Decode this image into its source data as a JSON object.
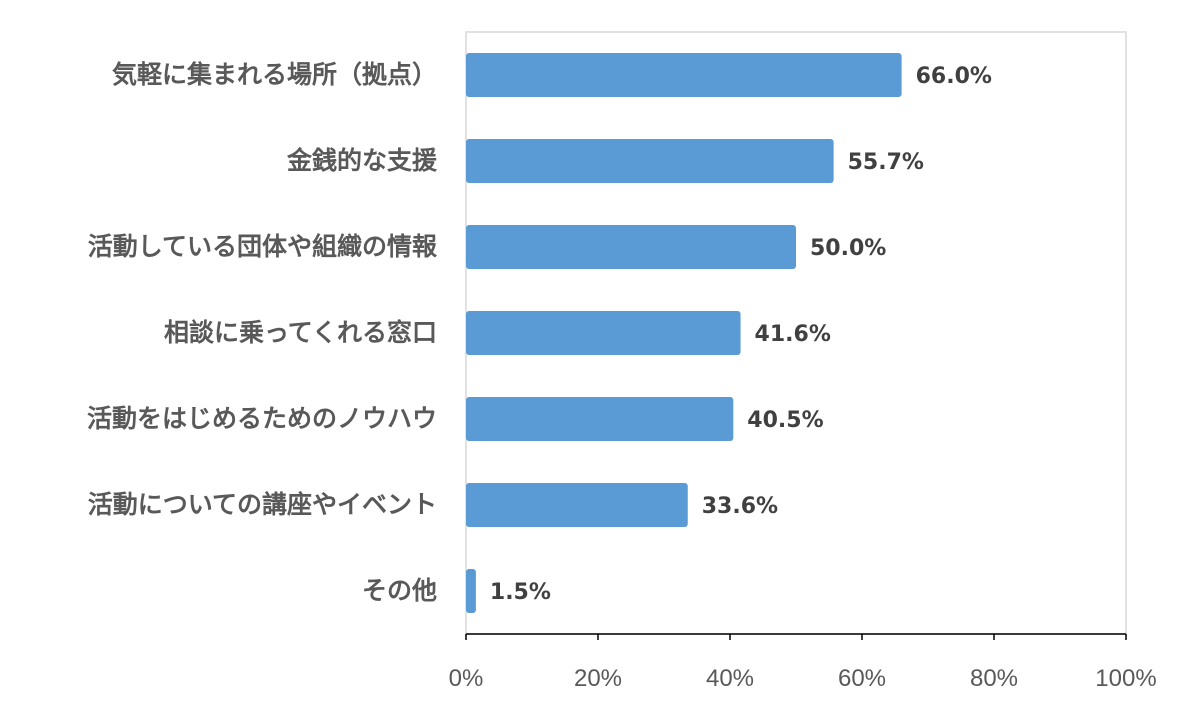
{
  "chart_data": {
    "type": "bar",
    "orientation": "horizontal",
    "title": "",
    "xlabel": "",
    "ylabel": "",
    "categories": [
      "気軽に集まれる場所（拠点）",
      "金銭的な支援",
      "活動している団体や組織の情報",
      "相談に乗ってくれる窓口",
      "活動をはじめるためのノウハウ",
      "活動についての講座やイベント",
      "その他"
    ],
    "values": [
      66.0,
      55.7,
      50.0,
      41.6,
      40.5,
      33.6,
      1.5
    ],
    "value_labels": [
      "66.0%",
      "55.7%",
      "50.0%",
      "41.6%",
      "40.5%",
      "33.6%",
      "1.5%"
    ],
    "xlim": [
      0,
      100
    ],
    "x_ticks": [
      0,
      20,
      40,
      60,
      80,
      100
    ],
    "x_tick_labels": [
      "0%",
      "20%",
      "40%",
      "60%",
      "80%",
      "100%"
    ],
    "grid": false,
    "legend": "none",
    "bar_color": "#5b9bd5",
    "axis_color": "#000000",
    "plot_border_color": "#d9d9d9"
  }
}
